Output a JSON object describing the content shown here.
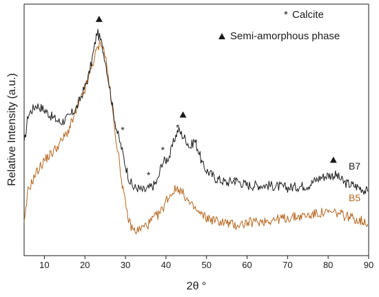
{
  "chart_data": {
    "type": "line",
    "xlabel": "2θ °",
    "ylabel": "Relative Intensity (a.u.)",
    "xlim": [
      5,
      90
    ],
    "ylim": [
      0,
      100
    ],
    "x_ticks": [
      10,
      20,
      30,
      40,
      50,
      60,
      70,
      80,
      90
    ],
    "y_ticks_shown": false,
    "grid": false,
    "legend": {
      "placement": "top-right",
      "entries": [
        {
          "marker": "*",
          "label": "Calcite"
        },
        {
          "marker": "triangle",
          "label": "Semi-amorphous phase"
        }
      ]
    },
    "series": [
      {
        "name": "B7",
        "color": "#1a1a1a",
        "x": [
          5,
          6,
          8,
          10,
          12,
          14,
          16,
          18,
          20,
          21,
          22,
          23,
          24,
          25,
          26,
          27,
          28,
          29,
          30,
          31,
          32,
          33,
          34,
          35,
          36,
          37,
          38,
          39,
          40,
          41,
          42,
          43,
          44,
          45,
          46,
          47,
          48,
          49,
          50,
          52,
          55,
          57,
          60,
          65,
          70,
          75,
          78,
          80,
          82,
          84,
          86,
          88,
          90
        ],
        "y": [
          44,
          56,
          60,
          58,
          55,
          53,
          55,
          59,
          67,
          72,
          80,
          89,
          85,
          78,
          68,
          57,
          49,
          43,
          36,
          30,
          27,
          27,
          26,
          26,
          27,
          28,
          30,
          37,
          38,
          40,
          46,
          50,
          48,
          46,
          43,
          46,
          42,
          36,
          34,
          31,
          29,
          30,
          28,
          28,
          27,
          28,
          31,
          32,
          32,
          29,
          28,
          27,
          25
        ]
      },
      {
        "name": "B5",
        "color": "#b5651d",
        "x": [
          5,
          6,
          8,
          10,
          12,
          14,
          16,
          18,
          20,
          21,
          22,
          23,
          24,
          25,
          26,
          27,
          28,
          29,
          30,
          31,
          32,
          33,
          34,
          35,
          36,
          37,
          38,
          39,
          40,
          41,
          42,
          43,
          44,
          45,
          46,
          47,
          48,
          49,
          50,
          52,
          55,
          57,
          60,
          65,
          70,
          75,
          78,
          80,
          82,
          84,
          86,
          88,
          90
        ],
        "y": [
          12,
          26,
          33,
          38,
          41,
          45,
          50,
          58,
          66,
          71,
          77,
          82,
          85,
          80,
          68,
          55,
          43,
          31,
          20,
          13,
          10,
          10,
          11,
          12,
          13,
          15,
          16,
          18,
          22,
          24,
          26,
          27,
          25,
          23,
          20,
          19,
          17,
          16,
          15,
          14,
          13,
          12,
          13,
          14,
          15,
          16,
          17,
          17,
          17,
          16,
          15,
          14,
          13
        ]
      }
    ],
    "series_labels": [
      {
        "text": "B7",
        "series": "B7"
      },
      {
        "text": "B5",
        "series": "B5"
      }
    ],
    "annotations": [
      {
        "marker": "triangle",
        "x": 23.5,
        "y": 94
      },
      {
        "marker": "triangle",
        "x": 44.2,
        "y": 56
      },
      {
        "marker": "triangle",
        "x": 81.3,
        "y": 38
      },
      {
        "marker": "*",
        "x": 29.3,
        "y": 50
      },
      {
        "marker": "*",
        "x": 35.7,
        "y": 32
      },
      {
        "marker": "*",
        "x": 39.2,
        "y": 42
      },
      {
        "marker": "*",
        "x": 42.9,
        "y": 51
      },
      {
        "marker": "*",
        "x": 47.3,
        "y": 45
      },
      {
        "marker": "*",
        "x": 57.0,
        "y": 30
      }
    ]
  }
}
